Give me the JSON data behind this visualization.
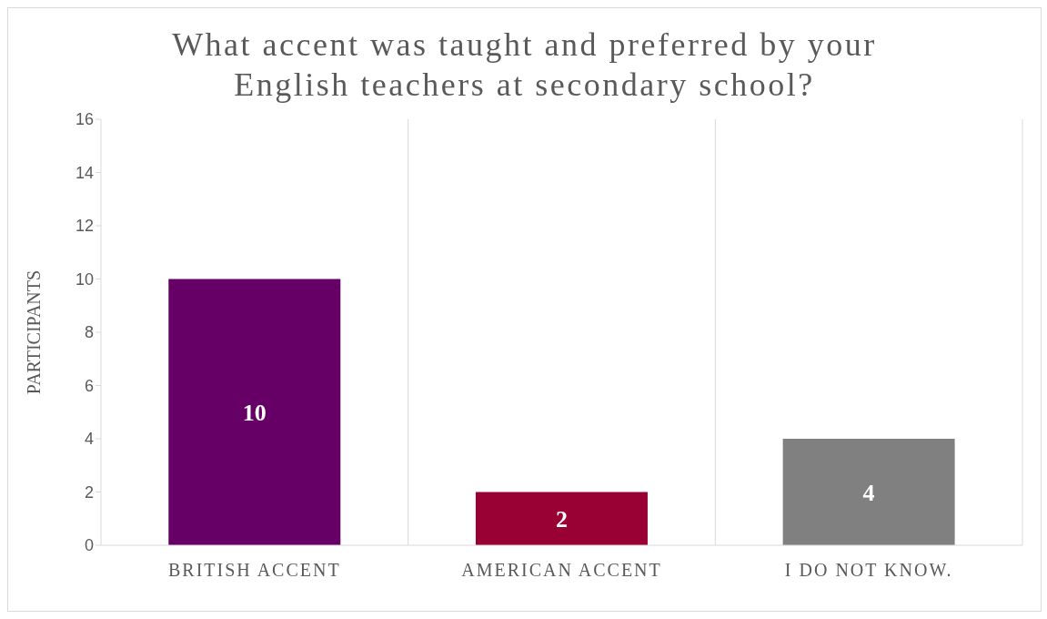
{
  "chart_data": {
    "type": "bar",
    "title": "What accent was taught and preferred by your English teachers at secondary school?",
    "ylabel": "PARTICIPANTS",
    "categories": [
      "BRITISH ACCENT",
      "AMERICAN ACCENT",
      "I DO NOT KNOW."
    ],
    "values": [
      10,
      2,
      4
    ],
    "colors": [
      "#660066",
      "#990033",
      "#808080"
    ],
    "ylim": [
      0,
      16
    ],
    "yticks": [
      0,
      2,
      4,
      6,
      8,
      10,
      12,
      14,
      16
    ],
    "grid": "x",
    "data_labels": true
  }
}
